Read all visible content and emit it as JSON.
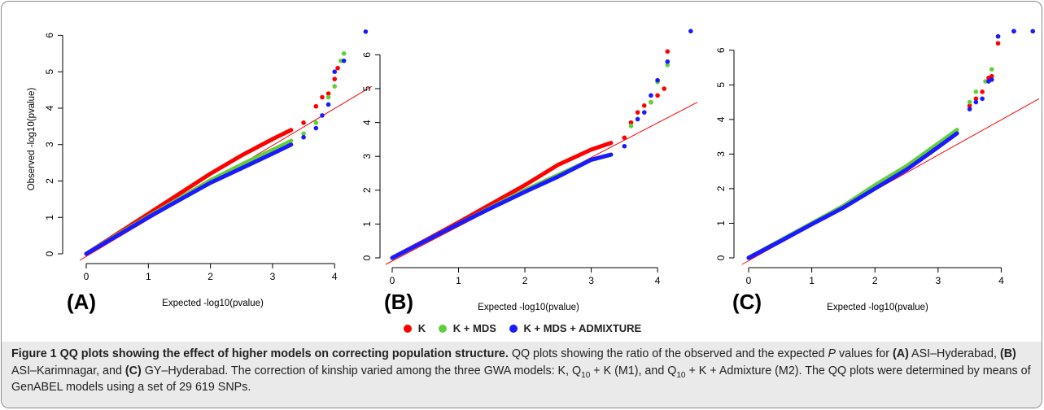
{
  "chart_data": [
    {
      "type": "scatter",
      "panel_label": "(A)",
      "xlabel": "Expected -log10(pvalue)",
      "ylabel": "Observed -log10(pvalue)",
      "xlim": [
        0,
        4.6
      ],
      "ylim": [
        0,
        6.3
      ],
      "xticks": [
        0,
        1,
        2,
        3,
        4
      ],
      "yticks": [
        0,
        1,
        2,
        3,
        4,
        5,
        6
      ],
      "series": [
        {
          "name": "K",
          "color": "#ff0000",
          "points": [
            [
              0,
              0
            ],
            [
              0.5,
              0.55
            ],
            [
              1,
              1.1
            ],
            [
              1.5,
              1.65
            ],
            [
              2,
              2.2
            ],
            [
              2.5,
              2.7
            ],
            [
              3,
              3.15
            ],
            [
              3.3,
              3.4
            ],
            [
              3.5,
              3.6
            ],
            [
              3.7,
              4.05
            ],
            [
              3.8,
              4.3
            ],
            [
              3.9,
              4.4
            ],
            [
              4.0,
              4.8
            ],
            [
              4.05,
              5.1
            ]
          ]
        },
        {
          "name": "K + MDS",
          "color": "#5fd03a",
          "points": [
            [
              0,
              0
            ],
            [
              0.5,
              0.52
            ],
            [
              1,
              1.02
            ],
            [
              1.5,
              1.52
            ],
            [
              2,
              2.02
            ],
            [
              2.5,
              2.45
            ],
            [
              3,
              2.85
            ],
            [
              3.3,
              3.1
            ],
            [
              3.5,
              3.3
            ],
            [
              3.7,
              3.6
            ],
            [
              3.9,
              4.3
            ],
            [
              4.0,
              4.6
            ],
            [
              4.1,
              5.3
            ],
            [
              4.15,
              5.5
            ]
          ]
        },
        {
          "name": "K + MDS + ADMIXTURE",
          "color": "#1a1aff",
          "points": [
            [
              0,
              0
            ],
            [
              0.5,
              0.5
            ],
            [
              1,
              1.0
            ],
            [
              1.5,
              1.48
            ],
            [
              2,
              1.95
            ],
            [
              2.5,
              2.35
            ],
            [
              3,
              2.75
            ],
            [
              3.3,
              3.0
            ],
            [
              3.5,
              3.2
            ],
            [
              3.7,
              3.45
            ],
            [
              3.8,
              3.8
            ],
            [
              3.9,
              4.1
            ],
            [
              4.0,
              5.0
            ],
            [
              4.15,
              5.3
            ],
            [
              4.5,
              6.1
            ]
          ]
        }
      ],
      "reference_line": {
        "color": "#ff0000",
        "x": [
          0,
          4.6
        ],
        "y": [
          0,
          4.6
        ]
      }
    },
    {
      "type": "scatter",
      "panel_label": "(B)",
      "xlabel": "Expected -log10(pvalue)",
      "ylabel": "",
      "xlim": [
        0,
        4.6
      ],
      "ylim": [
        0,
        6.9
      ],
      "xticks": [
        0,
        1,
        2,
        3,
        4
      ],
      "yticks": [
        0,
        1,
        2,
        3,
        4,
        5,
        6
      ],
      "series": [
        {
          "name": "K",
          "color": "#ff0000",
          "points": [
            [
              0,
              0
            ],
            [
              0.5,
              0.52
            ],
            [
              1,
              1.05
            ],
            [
              1.5,
              1.6
            ],
            [
              2,
              2.15
            ],
            [
              2.5,
              2.75
            ],
            [
              3,
              3.2
            ],
            [
              3.3,
              3.4
            ],
            [
              3.5,
              3.55
            ],
            [
              3.6,
              4.0
            ],
            [
              3.7,
              4.3
            ],
            [
              3.8,
              4.5
            ],
            [
              3.9,
              4.6
            ],
            [
              4.0,
              4.8
            ],
            [
              4.1,
              5.0
            ],
            [
              4.15,
              6.1
            ]
          ]
        },
        {
          "name": "K + MDS",
          "color": "#5fd03a",
          "points": [
            [
              0,
              0
            ],
            [
              0.5,
              0.5
            ],
            [
              1,
              1.0
            ],
            [
              1.5,
              1.5
            ],
            [
              2,
              2.0
            ],
            [
              2.5,
              2.45
            ],
            [
              3,
              2.9
            ],
            [
              3.3,
              3.05
            ],
            [
              3.6,
              3.9
            ],
            [
              3.9,
              4.6
            ],
            [
              4.0,
              5.2
            ],
            [
              4.15,
              5.7
            ]
          ]
        },
        {
          "name": "K + MDS + ADMIXTURE",
          "color": "#1a1aff",
          "points": [
            [
              0,
              0
            ],
            [
              0.5,
              0.5
            ],
            [
              1,
              1.0
            ],
            [
              1.5,
              1.48
            ],
            [
              2,
              1.95
            ],
            [
              2.5,
              2.4
            ],
            [
              3,
              2.9
            ],
            [
              3.3,
              3.05
            ],
            [
              3.5,
              3.3
            ],
            [
              3.7,
              4.1
            ],
            [
              3.8,
              4.3
            ],
            [
              3.9,
              4.8
            ],
            [
              4.0,
              5.25
            ],
            [
              4.15,
              5.8
            ],
            [
              4.5,
              6.7
            ]
          ]
        }
      ],
      "reference_line": {
        "color": "#ff0000",
        "x": [
          0,
          4.6
        ],
        "y": [
          0,
          4.6
        ]
      }
    },
    {
      "type": "scatter",
      "panel_label": "(C)",
      "xlabel": "Expected -log10(pvalue)",
      "ylabel": "",
      "xlim": [
        0,
        4.6
      ],
      "ylim": [
        0,
        6.7
      ],
      "xticks": [
        0,
        1,
        2,
        3,
        4
      ],
      "yticks": [
        0,
        1,
        2,
        3,
        4,
        5,
        6
      ],
      "series": [
        {
          "name": "K",
          "color": "#ff0000",
          "points": [
            [
              0,
              0
            ],
            [
              0.5,
              0.48
            ],
            [
              1,
              0.98
            ],
            [
              1.5,
              1.48
            ],
            [
              2,
              2.05
            ],
            [
              2.5,
              2.55
            ],
            [
              3,
              3.2
            ],
            [
              3.3,
              3.6
            ],
            [
              3.5,
              4.4
            ],
            [
              3.6,
              4.6
            ],
            [
              3.7,
              4.8
            ],
            [
              3.8,
              5.2
            ],
            [
              3.85,
              5.25
            ],
            [
              3.95,
              6.2
            ],
            [
              4.2,
              6.55
            ]
          ]
        },
        {
          "name": "K + MDS",
          "color": "#5fd03a",
          "points": [
            [
              0,
              0
            ],
            [
              0.5,
              0.5
            ],
            [
              1,
              1.0
            ],
            [
              1.5,
              1.5
            ],
            [
              2,
              2.1
            ],
            [
              2.5,
              2.65
            ],
            [
              3,
              3.3
            ],
            [
              3.3,
              3.7
            ],
            [
              3.5,
              4.5
            ],
            [
              3.6,
              4.8
            ],
            [
              3.75,
              5.1
            ],
            [
              3.85,
              5.45
            ],
            [
              3.95,
              6.4
            ],
            [
              4.2,
              6.55
            ]
          ]
        },
        {
          "name": "K + MDS + ADMIXTURE",
          "color": "#1a1aff",
          "points": [
            [
              0,
              0
            ],
            [
              0.5,
              0.48
            ],
            [
              1,
              0.97
            ],
            [
              1.5,
              1.45
            ],
            [
              2,
              2.0
            ],
            [
              2.5,
              2.55
            ],
            [
              3,
              3.2
            ],
            [
              3.3,
              3.6
            ],
            [
              3.5,
              4.3
            ],
            [
              3.6,
              4.5
            ],
            [
              3.7,
              4.6
            ],
            [
              3.8,
              5.1
            ],
            [
              3.85,
              5.15
            ],
            [
              3.95,
              6.4
            ],
            [
              4.2,
              6.55
            ],
            [
              4.5,
              6.55
            ]
          ]
        }
      ],
      "reference_line": {
        "color": "#ff0000",
        "x": [
          0,
          4.6
        ],
        "y": [
          0,
          4.6
        ]
      }
    }
  ],
  "legend": {
    "items": [
      {
        "label": "K",
        "color": "#ff0000"
      },
      {
        "label": "K + MDS",
        "color": "#5fd03a"
      },
      {
        "label": "K + MDS + ADMIXTURE",
        "color": "#1a1aff"
      }
    ]
  },
  "caption": {
    "title": "Figure 1 QQ plots showing the effect of higher models on correcting population structure.",
    "line1_a": "QQ plots showing the ratio of the observed",
    "line2_a": "and the expected",
    "p_symbol": "P",
    "line2_b": "values for",
    "label_a": "(A)",
    "name_a": "ASI–Hyderabad,",
    "label_b": "(B)",
    "name_b": "ASI–Karimnagar, and",
    "label_c": "(C)",
    "name_c": "GY–Hyderabad. The correction of kinship varied among the three GWA",
    "line3_a": "models: K, Q",
    "sub1": "10",
    "line3_b": "+ K (M1), and Q",
    "sub2": "10",
    "line3_c": "+ K + Admixture (M2). The QQ plots were determined by means of GenABEL models using a set of 29 619 SNPs."
  }
}
